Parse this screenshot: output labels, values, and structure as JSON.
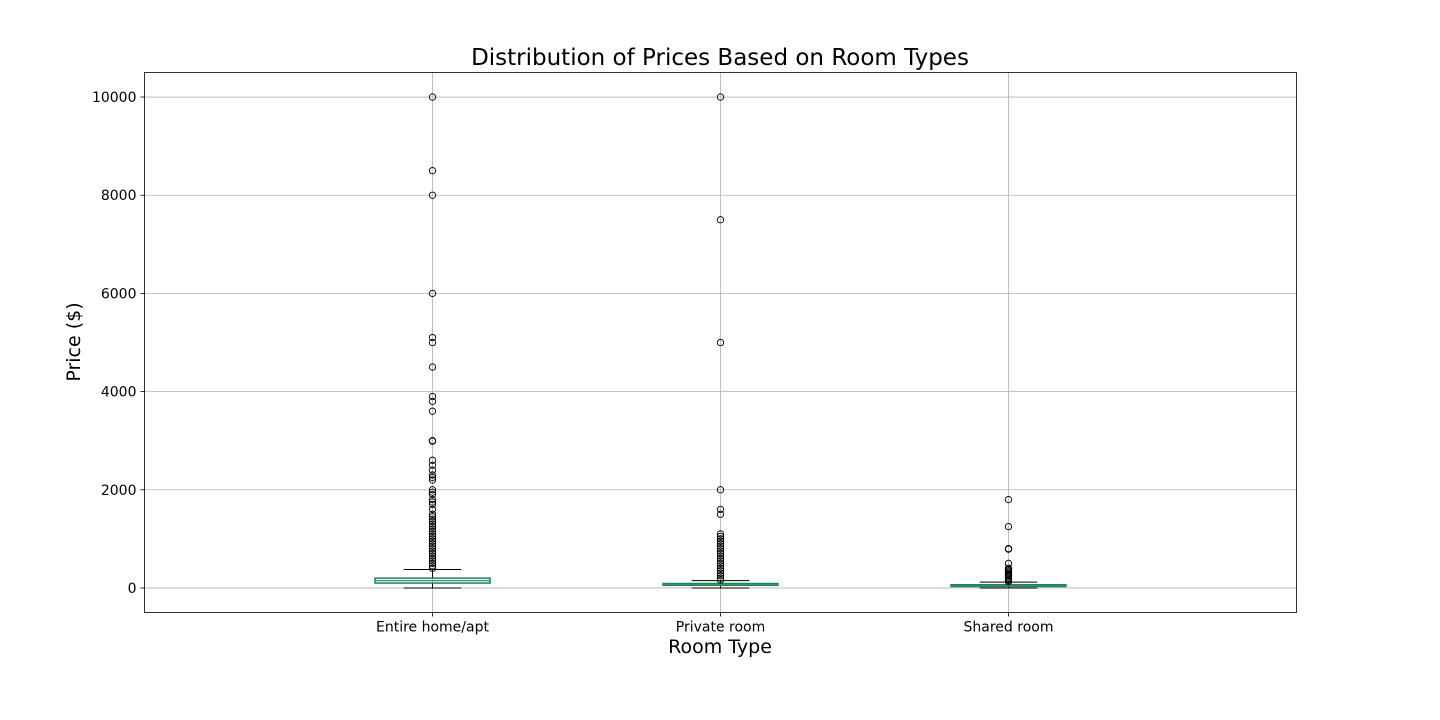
{
  "chart_data": {
    "type": "box",
    "title": "Distribution of Prices Based on Room Types",
    "xlabel": "Room Type",
    "ylabel": "Price ($)",
    "ylim": [
      -500,
      10500
    ],
    "yticks": [
      0,
      2000,
      4000,
      6000,
      8000,
      10000
    ],
    "grid": true,
    "box_color": "#1f7a7a",
    "median_color": "#2ca02c",
    "whisker_color": "#000000",
    "categories": [
      "Entire home/apt",
      "Private room",
      "Shared room"
    ],
    "boxes": [
      {
        "category": "Entire home/apt",
        "whislo": 0,
        "q1": 100,
        "median": 150,
        "q3": 200,
        "whishi": 375,
        "fliers": [
          10000,
          8500,
          8000,
          6000,
          5100,
          5000,
          4500,
          3900,
          3800,
          3600,
          3000,
          2990,
          2600,
          2500,
          2400,
          2300,
          2250,
          2200,
          2000,
          1950,
          1900,
          1800,
          1750,
          1700,
          1600,
          1500,
          1450,
          1400,
          1350,
          1300,
          1250,
          1200,
          1150,
          1100,
          1050,
          1000,
          950,
          900,
          850,
          800,
          750,
          700,
          650,
          600,
          550,
          500,
          450,
          400
        ]
      },
      {
        "category": "Private room",
        "whislo": 0,
        "q1": 55,
        "median": 70,
        "q3": 90,
        "whishi": 150,
        "fliers": [
          10000,
          7500,
          5000,
          2000,
          1600,
          1500,
          1100,
          1050,
          1000,
          950,
          900,
          850,
          800,
          750,
          700,
          650,
          600,
          550,
          500,
          450,
          400,
          350,
          300,
          250,
          200,
          160
        ]
      },
      {
        "category": "Shared room",
        "whislo": 0,
        "q1": 30,
        "median": 45,
        "q3": 65,
        "whishi": 120,
        "fliers": [
          1800,
          1250,
          800,
          790,
          500,
          400,
          375,
          350,
          325,
          300,
          275,
          250,
          225,
          200,
          175,
          150,
          130
        ]
      }
    ]
  }
}
